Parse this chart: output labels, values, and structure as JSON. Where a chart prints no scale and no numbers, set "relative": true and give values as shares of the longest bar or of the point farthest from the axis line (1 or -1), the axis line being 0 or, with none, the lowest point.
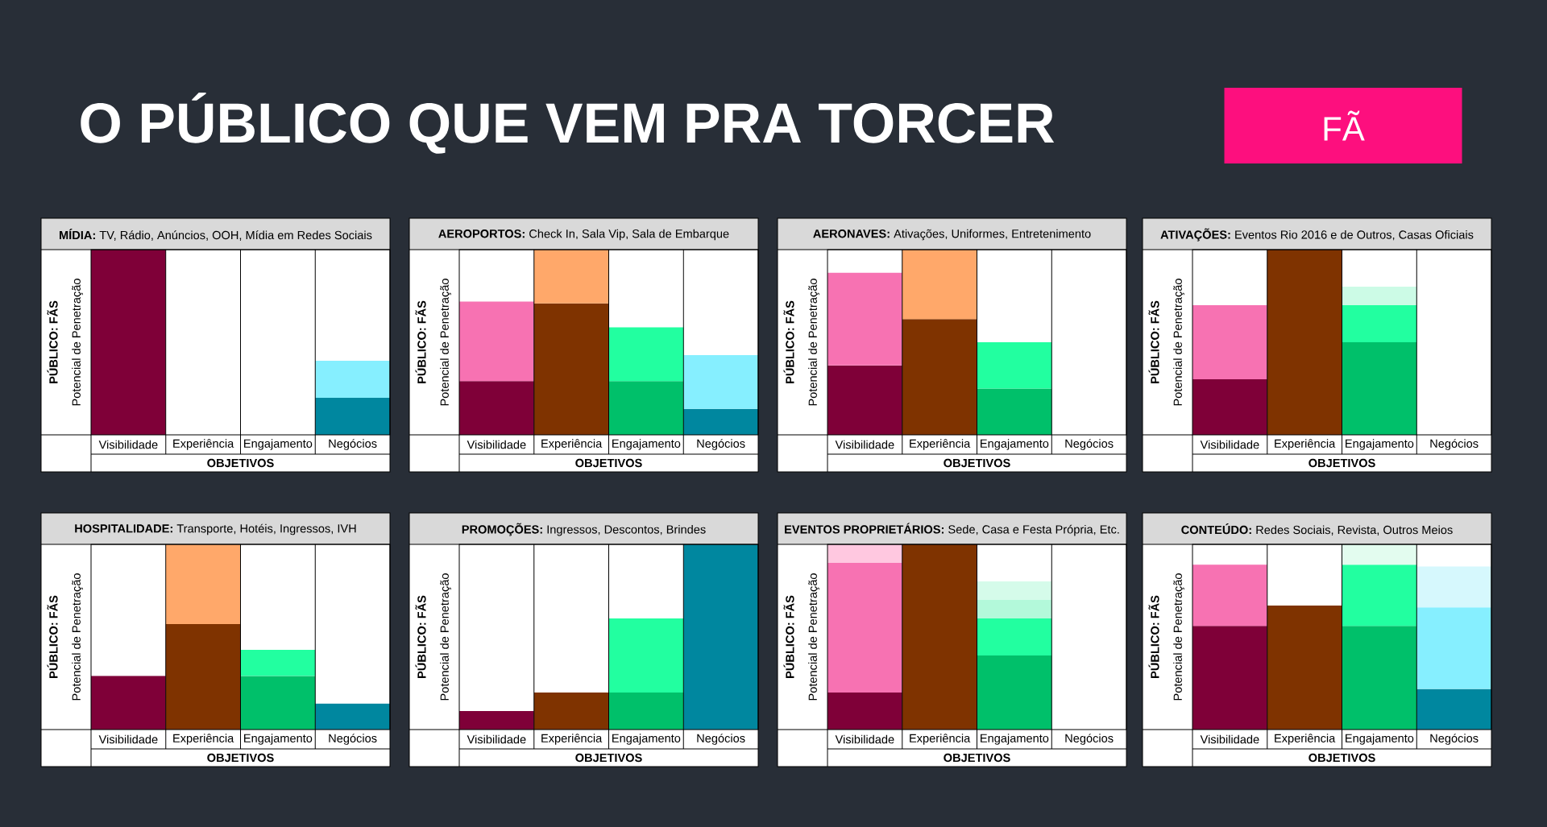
{
  "chart_data": [
    {
      "type": "bar",
      "stacked": true,
      "relative": true,
      "title": "**MÍDIA:** TV, Rádio, Anúncios, OOH, Mídia em Redes Sociais",
      "ylabel": "PÚBLICO: FÃS",
      "xlabel": "OBJETIVOS",
      "categories": [
        "Visibilidade",
        "Experiência",
        "Engajamento",
        "Negócios"
      ],
      "series": [
        {
          "colors": [
            "#7f0038",
            "#7f3300",
            "#00c06a",
            "#00879f"
          ],
          "values": [
            1,
            0,
            0,
            0.2
          ]
        },
        {
          "colors": [
            null,
            null,
            null,
            "#86efff"
          ],
          "values": [
            null,
            null,
            null,
            0.2
          ]
        }
      ],
      "annotations": [
        "Potencial de Penetração",
        "O PÚBLICO QUE VEM PRA TORCER",
        "FÃ"
      ]
    },
    {
      "type": "bar",
      "stacked": true,
      "relative": true,
      "title": "**AEROPORTOS:** Check In, Sala Vip, Sala de Embarque",
      "ylabel": "PÚBLICO: FÃS",
      "xlabel": "OBJETIVOS",
      "categories": [
        "Visibilidade",
        "Experiência",
        "Engajamento",
        "Negócios"
      ],
      "series": [
        {
          "colors": [
            "#7f0038",
            "#7f3300",
            "#00c06a",
            "#00879f"
          ],
          "values": [
            0.29,
            0.71,
            0.29,
            0.14
          ]
        },
        {
          "colors": [
            "#f772b2",
            "#ffa86a",
            "#22ffa0",
            "#86efff"
          ],
          "values": [
            0.43,
            0.29,
            0.29,
            0.29
          ]
        }
      ],
      "annotations": [
        "Potencial de Penetração"
      ]
    },
    {
      "type": "bar",
      "stacked": true,
      "relative": true,
      "title": "**AERONAVES:** Ativações, Uniformes, Entretenimento",
      "ylabel": "PÚBLICO: FÃS",
      "xlabel": "OBJETIVOS",
      "categories": [
        "Visibilidade",
        "Experiência",
        "Engajamento",
        "Negócios"
      ],
      "series": [
        {
          "colors": [
            "#7f0038",
            "#7f3300",
            "#00c06a",
            "#00879f"
          ],
          "values": [
            0.375,
            0.625,
            0.25,
            0
          ]
        },
        {
          "colors": [
            "#f772b2",
            "#ffa86a",
            "#22ffa0",
            null
          ],
          "values": [
            0.5,
            0.375,
            0.25,
            null
          ]
        }
      ],
      "annotations": [
        "Potencial de Penetração"
      ]
    },
    {
      "type": "bar",
      "stacked": true,
      "relative": true,
      "title": "**ATIVAÇÕES:** Eventos Rio 2016 e de Outros, Casas Oficiais",
      "ylabel": "PÚBLICO: FÃS",
      "xlabel": "OBJETIVOS",
      "categories": [
        "Visibilidade",
        "Experiência",
        "Engajamento",
        "Negócios"
      ],
      "series": [
        {
          "colors": [
            "#7f0038",
            "#7f3300",
            "#00c06a",
            "#00879f"
          ],
          "values": [
            0.3,
            1,
            0.5,
            0
          ]
        },
        {
          "colors": [
            "#f772b2",
            null,
            "#22ffa0",
            null
          ],
          "values": [
            0.4,
            null,
            0.2,
            null
          ]
        },
        {
          "colors": [
            null,
            null,
            "#ccfbe6",
            null
          ],
          "values": [
            null,
            null,
            0.1,
            null
          ]
        }
      ],
      "annotations": [
        "Potencial de Penetração"
      ]
    },
    {
      "type": "bar",
      "stacked": true,
      "relative": true,
      "title": "**HOSPITALIDADE:** Transporte, Hotéis, Ingressos, IVH",
      "ylabel": "PÚBLICO: FÃS",
      "xlabel": "OBJETIVOS",
      "categories": [
        "Visibilidade",
        "Experiência",
        "Engajamento",
        "Negócios"
      ],
      "series": [
        {
          "colors": [
            "#7f0038",
            "#7f3300",
            "#00c06a",
            "#00879f"
          ],
          "values": [
            0.29,
            0.57,
            0.29,
            0.14
          ]
        },
        {
          "colors": [
            null,
            "#ffa86a",
            "#22ffa0",
            null
          ],
          "values": [
            null,
            0.43,
            0.14,
            null
          ]
        }
      ],
      "annotations": [
        "Potencial de Penetração"
      ]
    },
    {
      "type": "bar",
      "stacked": true,
      "relative": true,
      "title": "**PROMOÇÕES:** Ingressos, Descontos, Brindes",
      "ylabel": "PÚBLICO: FÃS",
      "xlabel": "OBJETIVOS",
      "categories": [
        "Visibilidade",
        "Experiência",
        "Engajamento",
        "Negócios"
      ],
      "series": [
        {
          "colors": [
            "#7f0038",
            "#7f3300",
            "#00c06a",
            "#00879f"
          ],
          "values": [
            0.1,
            0.2,
            0.2,
            1
          ]
        },
        {
          "colors": [
            null,
            null,
            "#22ffa0",
            null
          ],
          "values": [
            null,
            null,
            0.4,
            null
          ]
        }
      ],
      "annotations": [
        "Potencial de Penetração"
      ]
    },
    {
      "type": "bar",
      "stacked": true,
      "relative": true,
      "title": "**EVENTOS PROPRIETÁRIOS:** Sede, Casa e Festa Própria, Etc.",
      "ylabel": "PÚBLICO: FÃS",
      "xlabel": "OBJETIVOS",
      "categories": [
        "Visibilidade",
        "Experiência",
        "Engajamento",
        "Negócios"
      ],
      "series": [
        {
          "colors": [
            "#7f0038",
            "#7f3300",
            "#00c06a",
            "#00879f"
          ],
          "values": [
            0.2,
            1,
            0.4,
            0
          ]
        },
        {
          "colors": [
            "#f772b2",
            null,
            "#22ffa0",
            null
          ],
          "values": [
            0.7,
            null,
            0.2,
            null
          ]
        },
        {
          "colors": [
            "#ffc8e0",
            null,
            "#b3f9da",
            null
          ],
          "values": [
            0.1,
            null,
            0.1,
            null
          ]
        },
        {
          "colors": [
            null,
            null,
            "#d5fbea",
            null
          ],
          "values": [
            null,
            null,
            0.1,
            null
          ]
        }
      ],
      "annotations": [
        "Potencial de Penetração"
      ]
    },
    {
      "type": "bar",
      "stacked": true,
      "relative": true,
      "title": "**CONTEÚDO:** Redes Sociais, Revista, Outros Meios",
      "ylabel": "PÚBLICO: FÃS",
      "xlabel": "OBJETIVOS",
      "categories": [
        "Visibilidade",
        "Experiência",
        "Engajamento",
        "Negócios"
      ],
      "series": [
        {
          "colors": [
            "#7f0038",
            "#7f3300",
            "#00c06a",
            "#00879f"
          ],
          "values": [
            0.56,
            0.67,
            0.56,
            0.22
          ]
        },
        {
          "colors": [
            "#f772b2",
            null,
            "#22ffa0",
            "#86efff"
          ],
          "values": [
            0.33,
            null,
            0.33,
            0.44
          ]
        },
        {
          "colors": [
            null,
            null,
            "#e3fcef",
            "#d6f8fd"
          ],
          "values": [
            null,
            null,
            0.11,
            0.22
          ]
        }
      ],
      "annotations": [
        "Potencial de Penetração"
      ]
    }
  ]
}
